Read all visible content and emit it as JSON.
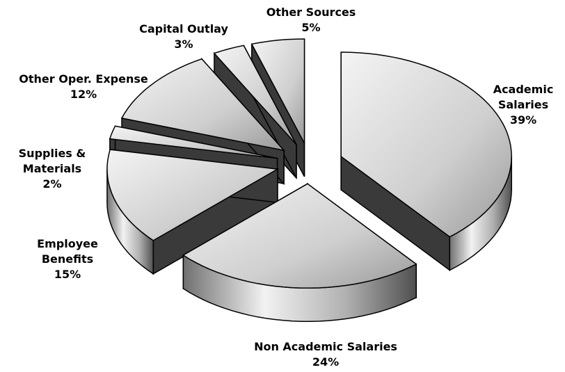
{
  "chart_data": {
    "type": "pie",
    "categories": [
      "Academic Salaries",
      "Non Academic Salaries",
      "Employee Benefits",
      "Supplies & Materials",
      "Other Oper. Expense",
      "Capital Outlay",
      "Other Sources"
    ],
    "values": [
      39,
      24,
      15,
      2,
      12,
      3,
      5
    ],
    "value_labels": [
      "39%",
      "24%",
      "15%",
      "2%",
      "12%",
      "3%",
      "5%"
    ],
    "color": "#d0d0d0"
  }
}
